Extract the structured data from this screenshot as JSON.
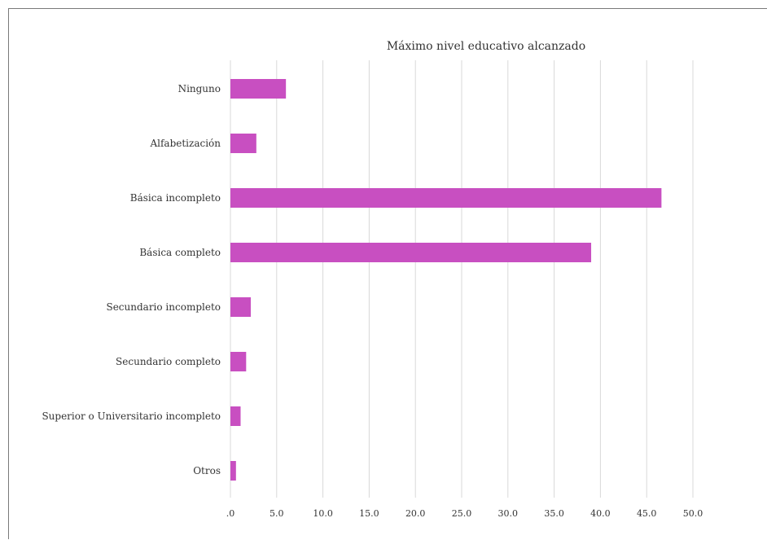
{
  "chart_data": {
    "type": "bar",
    "orientation": "horizontal",
    "title": "Máximo nivel educativo alcanzado",
    "categories": [
      "Ninguno",
      "Alfabetización",
      "Básica incompleto",
      "Básica completo",
      "Secundario incompleto",
      "Secundario completo",
      "Superior o Universitario incompleto",
      "Otros"
    ],
    "values": [
      6.0,
      2.8,
      46.6,
      39.0,
      2.2,
      1.7,
      1.1,
      0.6
    ],
    "ticks": [
      ".0",
      "5.0",
      "10.0",
      "15.0",
      "20.0",
      "25.0",
      "30.0",
      "35.0",
      "40.0",
      "45.0",
      "50.0"
    ],
    "xlim": [
      0,
      50
    ],
    "grid": true,
    "legend": "none",
    "bar_color": "#c84fc1",
    "grid_color": "#d9d9d9"
  }
}
